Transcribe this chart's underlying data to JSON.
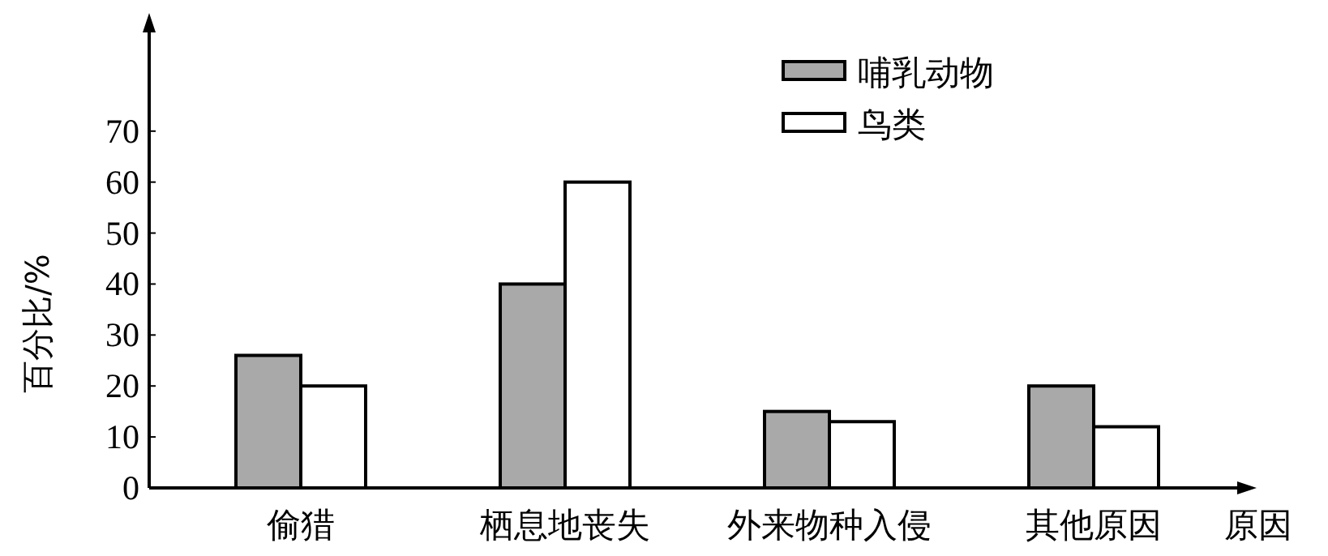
{
  "chart_data": {
    "type": "bar",
    "ylabel": "百分比/%",
    "xlabel": "原因",
    "categories": [
      "偷猎",
      "栖息地丧失",
      "外来物种入侵",
      "其他原因"
    ],
    "series": [
      {
        "name": "哺乳动物",
        "color": "#a9a9a9",
        "values": [
          26,
          40,
          15,
          20
        ]
      },
      {
        "name": "鸟类",
        "color": "#ffffff",
        "values": [
          20,
          60,
          13,
          12
        ]
      }
    ],
    "ylim": [
      0,
      90
    ],
    "yticks": [
      0,
      10,
      20,
      30,
      40,
      50,
      60,
      70
    ],
    "legend": "top",
    "grid": false
  }
}
